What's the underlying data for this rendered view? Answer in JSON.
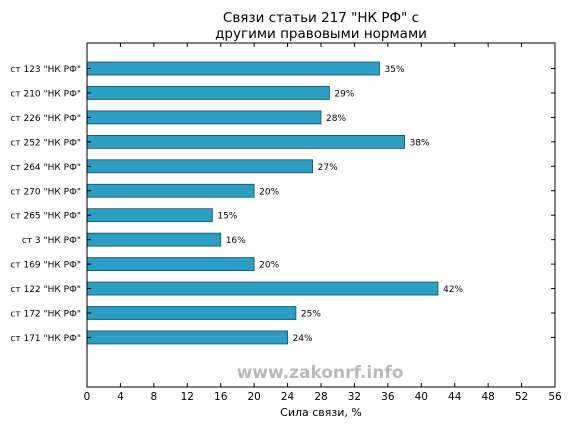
{
  "chart_data": {
    "type": "bar",
    "orientation": "horizontal",
    "title_lines": [
      "Связи статьи 217 \"НК РФ\" с",
      "другими правовыми нормами"
    ],
    "xlabel": "Сила связи, %",
    "ylabel": "",
    "xlim": [
      0,
      56
    ],
    "xticks": [
      "0",
      "4",
      "8",
      "12",
      "16",
      "20",
      "24",
      "28",
      "32",
      "36",
      "40",
      "44",
      "48",
      "52",
      "56"
    ],
    "categories": [
      "ст 123 \"НК РФ\"",
      "ст 210 \"НК РФ\"",
      "ст 226 \"НК РФ\"",
      "ст 252 \"НК РФ\"",
      "ст 264 \"НК РФ\"",
      "ст 270 \"НК РФ\"",
      "ст 265 \"НК РФ\"",
      "ст 3 \"НК РФ\"",
      "ст 169 \"НК РФ\"",
      "ст 122 \"НК РФ\"",
      "ст 172 \"НК РФ\"",
      "ст 171 \"НК РФ\""
    ],
    "values": [
      35,
      29,
      28,
      38,
      27,
      20,
      15,
      16,
      20,
      42,
      25,
      24
    ],
    "value_labels": [
      "35%",
      "29%",
      "28%",
      "38%",
      "27%",
      "20%",
      "15%",
      "16%",
      "20%",
      "42%",
      "25%",
      "24%"
    ],
    "grid": false,
    "bar_color": "#2b9ec4",
    "bar_edge_color": "#1a4d5e"
  },
  "watermark": "www.zakonrf.info"
}
